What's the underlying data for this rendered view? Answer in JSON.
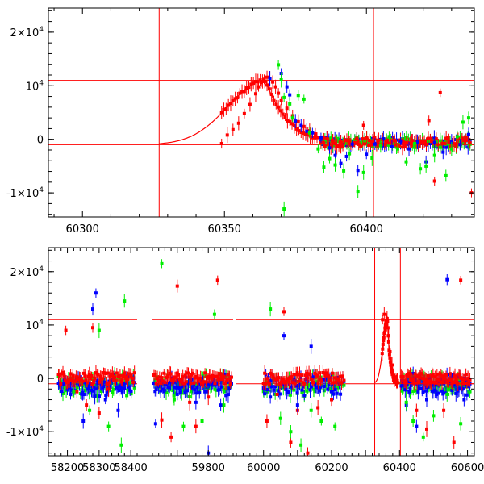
{
  "chart_data": [
    {
      "type": "scatter",
      "title": "",
      "xlabel": "",
      "ylabel": "",
      "xlim": [
        60288,
        60438
      ],
      "ylim": [
        -14500,
        24500
      ],
      "x_ticks": [
        60300,
        60350,
        60400
      ],
      "y_ticks": [
        {
          "value": -10000,
          "label": "-1×10",
          "exp": "4"
        },
        {
          "value": 0,
          "label": "0",
          "exp": ""
        },
        {
          "value": 10000,
          "label": "10",
          "exp": "4"
        },
        {
          "value": 20000,
          "label": "2×10",
          "exp": "4"
        }
      ],
      "hlines": [
        11000,
        -1000
      ],
      "vlines": [
        60327,
        60402.5
      ],
      "model_curve": {
        "color": "#ff0000",
        "peak_x": 60364.5,
        "peak_y": 11000,
        "baseline": -1000,
        "start_x": 60327
      },
      "series": [
        {
          "color": "#ff0000",
          "points": [
            [
              60349,
              -800
            ],
            [
              60351,
              800
            ],
            [
              60353,
              1800
            ],
            [
              60355,
              3000
            ],
            [
              60357,
              4800
            ],
            [
              60359,
              6500
            ],
            [
              60361,
              8500
            ],
            [
              60362,
              9800
            ],
            [
              60363,
              10600
            ],
            [
              60364,
              11200
            ],
            [
              60365,
              11600
            ],
            [
              60366,
              11300
            ],
            [
              60367,
              10700
            ],
            [
              60368,
              9800
            ],
            [
              60369,
              8600
            ],
            [
              60370,
              7200
            ],
            [
              60372,
              5800
            ],
            [
              60374,
              4400
            ],
            [
              60376,
              3300
            ],
            [
              60378,
              2400
            ],
            [
              60380,
              1600
            ],
            [
              60382,
              1000
            ],
            [
              60385,
              300
            ],
            [
              60388,
              -200
            ],
            [
              60391,
              -500
            ],
            [
              60394,
              -400
            ],
            [
              60397,
              -300
            ],
            [
              60399,
              2600
            ],
            [
              60401,
              -200
            ],
            [
              60404,
              -400
            ],
            [
              60407,
              -300
            ],
            [
              60410,
              -200
            ],
            [
              60413,
              -500
            ],
            [
              60416,
              -300
            ],
            [
              60419,
              -400
            ],
            [
              60422,
              3500
            ],
            [
              60424,
              -7800
            ],
            [
              60426,
              8700
            ],
            [
              60429,
              -500
            ],
            [
              60432,
              -300
            ],
            [
              60435,
              -200
            ],
            [
              60437,
              -10000
            ]
          ]
        },
        {
          "color": "#0000ff",
          "points": [
            [
              60366,
              11400
            ],
            [
              60370,
              12300
            ],
            [
              60372,
              9800
            ],
            [
              60373,
              8300
            ],
            [
              60375,
              3400
            ],
            [
              60377,
              2600
            ],
            [
              60379,
              1500
            ],
            [
              60381,
              1200
            ],
            [
              60384,
              300
            ],
            [
              60387,
              -1600
            ],
            [
              60389,
              -3000
            ],
            [
              60391,
              -4500
            ],
            [
              60393,
              -3200
            ],
            [
              60395,
              -900
            ],
            [
              60397,
              -5800
            ],
            [
              60400,
              -2800
            ],
            [
              60403,
              -900
            ],
            [
              60406,
              100
            ],
            [
              60409,
              -1400
            ],
            [
              60412,
              -300
            ],
            [
              60415,
              -1800
            ],
            [
              60418,
              -500
            ],
            [
              60421,
              -4200
            ],
            [
              60424,
              -600
            ],
            [
              60427,
              -2400
            ],
            [
              60430,
              -500
            ],
            [
              60433,
              -1000
            ],
            [
              60436,
              900
            ]
          ]
        },
        {
          "color": "#00ee00",
          "points": [
            [
              60369,
              13900
            ],
            [
              60370,
              11100
            ],
            [
              60371,
              7800
            ],
            [
              60373,
              6600
            ],
            [
              60374,
              4000
            ],
            [
              60371,
              -13000
            ],
            [
              60376,
              8200
            ],
            [
              60378,
              7500
            ],
            [
              60380,
              1200
            ],
            [
              60383,
              -1800
            ],
            [
              60385,
              -5200
            ],
            [
              60387,
              -3600
            ],
            [
              60389,
              -4800
            ],
            [
              60392,
              -5900
            ],
            [
              60394,
              -2700
            ],
            [
              60397,
              -9700
            ],
            [
              60399,
              -6200
            ],
            [
              60402,
              -3500
            ],
            [
              60405,
              -1200
            ],
            [
              60408,
              500
            ],
            [
              60411,
              -1800
            ],
            [
              60414,
              -4200
            ],
            [
              60417,
              -800
            ],
            [
              60419,
              -5500
            ],
            [
              60421,
              -5000
            ],
            [
              60424,
              -3000
            ],
            [
              60426,
              -1500
            ],
            [
              60428,
              -6800
            ],
            [
              60430,
              -1800
            ],
            [
              60432,
              500
            ],
            [
              60434,
              3200
            ],
            [
              60436,
              4000
            ]
          ]
        }
      ]
    },
    {
      "type": "scatter",
      "title": "",
      "xlabel": "",
      "ylabel": "",
      "ylim": [
        -14500,
        24500
      ],
      "x_segments": [
        {
          "xlim": [
            58140,
            58420
          ],
          "ticks": [
            58200,
            58300,
            58400
          ]
        },
        {
          "xlim": [
            59620,
            59880
          ],
          "ticks": [
            59800
          ]
        },
        {
          "xlim": [
            59920,
            60620
          ],
          "ticks": [
            60000,
            60200,
            60400,
            60600
          ]
        }
      ],
      "y_ticks": [
        {
          "value": -10000,
          "label": "-1×10",
          "exp": "4"
        },
        {
          "value": 0,
          "label": "0",
          "exp": ""
        },
        {
          "value": 10000,
          "label": "10",
          "exp": "4"
        },
        {
          "value": 20000,
          "label": "2×10",
          "exp": "4"
        }
      ],
      "hlines": [
        11000,
        -1000
      ],
      "vlines": [
        60327,
        60402.5
      ],
      "dense_bands": [
        {
          "segment": 0,
          "x_range": [
            58172,
            58415
          ],
          "y_center": 0,
          "y_spread": 1800
        },
        {
          "segment": 1,
          "x_range": [
            59625,
            59875
          ],
          "y_center": 0,
          "y_spread": 1800
        },
        {
          "segment": 2,
          "x_range": [
            60000,
            60240
          ],
          "y_center": 0,
          "y_spread": 1800
        },
        {
          "segment": 2,
          "x_range": [
            60405,
            60610
          ],
          "y_center": 0,
          "y_spread": 1600
        }
      ],
      "series": [
        {
          "color": "#ff0000",
          "points": [
            [
              58195,
              9000
            ],
            [
              58230,
              -2500
            ],
            [
              58260,
              -5000
            ],
            [
              58280,
              9500
            ],
            [
              58300,
              -6500
            ],
            [
              58330,
              -2000
            ],
            [
              59650,
              -7800
            ],
            [
              59680,
              -11000
            ],
            [
              59700,
              17300
            ],
            [
              59740,
              -4500
            ],
            [
              59760,
              -9000
            ],
            [
              59800,
              -3500
            ],
            [
              59830,
              18400
            ],
            [
              60010,
              -8000
            ],
            [
              60040,
              -3000
            ],
            [
              60060,
              12500
            ],
            [
              60080,
              -12000
            ],
            [
              60100,
              -6000
            ],
            [
              60130,
              -14000
            ],
            [
              60160,
              -5500
            ],
            [
              60200,
              -4000
            ],
            [
              60350,
              11000
            ],
            [
              60355,
              12000
            ],
            [
              60362,
              10000
            ],
            [
              60368,
              8000
            ],
            [
              60372,
              5000
            ],
            [
              60378,
              2500
            ],
            [
              60450,
              -6000
            ],
            [
              60480,
              -9500
            ],
            [
              60530,
              -6000
            ],
            [
              60560,
              -12000
            ],
            [
              60580,
              18400
            ]
          ]
        },
        {
          "color": "#0000ff",
          "points": [
            [
              58210,
              -3000
            ],
            [
              58250,
              -8000
            ],
            [
              58280,
              13000
            ],
            [
              58290,
              16000
            ],
            [
              58320,
              -4000
            ],
            [
              58360,
              -6000
            ],
            [
              59630,
              -8500
            ],
            [
              59700,
              -3000
            ],
            [
              59760,
              -4500
            ],
            [
              59800,
              -14000
            ],
            [
              59840,
              -5000
            ],
            [
              60020,
              -3500
            ],
            [
              60060,
              8000
            ],
            [
              60100,
              -5000
            ],
            [
              60140,
              6000
            ],
            [
              60200,
              -2500
            ],
            [
              60420,
              -5000
            ],
            [
              60450,
              -9000
            ],
            [
              60480,
              -4000
            ],
            [
              60510,
              -3000
            ],
            [
              60540,
              18500
            ],
            [
              60590,
              -4000
            ]
          ]
        },
        {
          "color": "#00ee00",
          "points": [
            [
              58220,
              -2500
            ],
            [
              58270,
              -6000
            ],
            [
              58300,
              9000
            ],
            [
              58330,
              -9000
            ],
            [
              58370,
              -12500
            ],
            [
              58380,
              14500
            ],
            [
              59650,
              21500
            ],
            [
              59690,
              -4000
            ],
            [
              59720,
              -9000
            ],
            [
              59780,
              -8000
            ],
            [
              59820,
              12000
            ],
            [
              59850,
              -5000
            ],
            [
              60020,
              13000
            ],
            [
              60050,
              -7500
            ],
            [
              60080,
              -10000
            ],
            [
              60110,
              -12500
            ],
            [
              60140,
              -6000
            ],
            [
              60170,
              -8000
            ],
            [
              60210,
              -9000
            ],
            [
              60420,
              -4500
            ],
            [
              60440,
              -8000
            ],
            [
              60470,
              -11000
            ],
            [
              60500,
              -7000
            ],
            [
              60540,
              -3000
            ],
            [
              60580,
              -8500
            ]
          ]
        }
      ]
    }
  ]
}
